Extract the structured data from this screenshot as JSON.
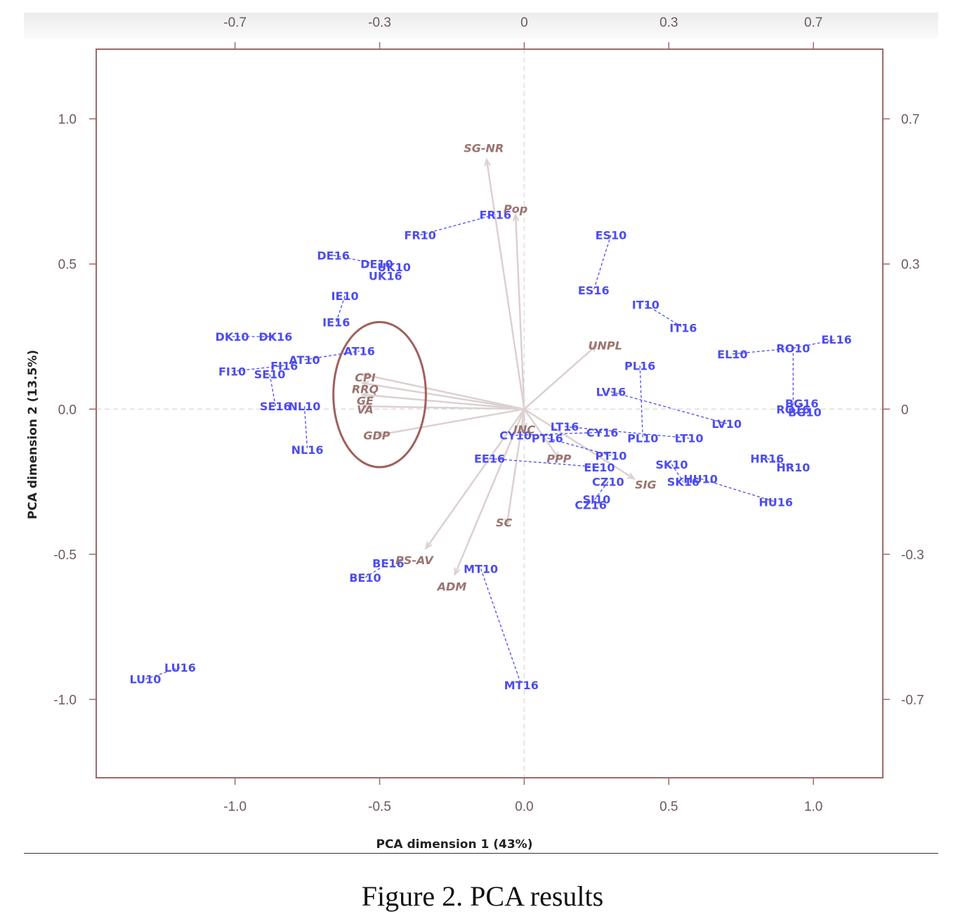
{
  "caption": "Figure 2. PCA results",
  "colors": {
    "frame": "#9a6b6b",
    "observation": "#4c4cf0",
    "variable": "#9a7470",
    "arrow": "#dcd0d0",
    "highlight": "#a0605e"
  },
  "chart_data": {
    "type": "scatter",
    "xlabel": "PCA dimension 1 (43%)",
    "ylabel": "PCA dimension 2 (13.5%)",
    "xlim": [
      -1.48,
      1.24
    ],
    "ylim": [
      -1.27,
      1.24
    ],
    "x_ticks": [
      "-1.0",
      "-0.5",
      "0.0",
      "0.5",
      "1.0"
    ],
    "y_ticks": [
      "1.0",
      "0.5",
      "0.0",
      "-0.5",
      "-1.0"
    ],
    "top_ticks": [
      "-0.7",
      "-0.3",
      "0",
      "0.3",
      "0.7"
    ],
    "right_ticks": [
      "0.7",
      "0.3",
      "0",
      "-0.3",
      "-0.7"
    ],
    "observations": [
      {
        "label": "DK10",
        "x": -1.01,
        "y": 0.25
      },
      {
        "label": "DK16",
        "x": -0.86,
        "y": 0.25
      },
      {
        "label": "DE16",
        "x": -0.66,
        "y": 0.53
      },
      {
        "label": "DE10",
        "x": -0.51,
        "y": 0.5
      },
      {
        "label": "UK10",
        "x": -0.45,
        "y": 0.49
      },
      {
        "label": "UK16",
        "x": -0.48,
        "y": 0.46
      },
      {
        "label": "FR10",
        "x": -0.36,
        "y": 0.6
      },
      {
        "label": "FR16",
        "x": -0.1,
        "y": 0.67
      },
      {
        "label": "IE10",
        "x": -0.62,
        "y": 0.39
      },
      {
        "label": "IE16",
        "x": -0.65,
        "y": 0.3
      },
      {
        "label": "AT10",
        "x": -0.76,
        "y": 0.17
      },
      {
        "label": "AT16",
        "x": -0.57,
        "y": 0.2
      },
      {
        "label": "FI16",
        "x": -0.83,
        "y": 0.15
      },
      {
        "label": "FI10",
        "x": -1.01,
        "y": 0.13
      },
      {
        "label": "SE10",
        "x": -0.88,
        "y": 0.12
      },
      {
        "label": "SE16",
        "x": -0.86,
        "y": 0.01
      },
      {
        "label": "NL10",
        "x": -0.76,
        "y": 0.01
      },
      {
        "label": "NL16",
        "x": -0.75,
        "y": -0.14
      },
      {
        "label": "LU10",
        "x": -1.31,
        "y": -0.93
      },
      {
        "label": "LU16",
        "x": -1.19,
        "y": -0.89
      },
      {
        "label": "BE16",
        "x": -0.47,
        "y": -0.53
      },
      {
        "label": "BE10",
        "x": -0.55,
        "y": -0.58
      },
      {
        "label": "MT10",
        "x": -0.15,
        "y": -0.55
      },
      {
        "label": "MT16",
        "x": -0.01,
        "y": -0.95
      },
      {
        "label": "EE16",
        "x": -0.12,
        "y": -0.17
      },
      {
        "label": "EE10",
        "x": 0.26,
        "y": -0.2
      },
      {
        "label": "CY10",
        "x": -0.03,
        "y": -0.09
      },
      {
        "label": "CY16",
        "x": 0.27,
        "y": -0.08
      },
      {
        "label": "PL16",
        "x": 0.4,
        "y": 0.15
      },
      {
        "label": "PL10",
        "x": 0.41,
        "y": -0.1
      },
      {
        "label": "LV16",
        "x": 0.3,
        "y": 0.06
      },
      {
        "label": "LV10",
        "x": 0.7,
        "y": -0.05
      },
      {
        "label": "LT16",
        "x": 0.14,
        "y": -0.06
      },
      {
        "label": "LT10",
        "x": 0.57,
        "y": -0.1
      },
      {
        "label": "PT16",
        "x": 0.08,
        "y": -0.1
      },
      {
        "label": "PT10",
        "x": 0.3,
        "y": -0.16
      },
      {
        "label": "CZ10",
        "x": 0.29,
        "y": -0.25
      },
      {
        "label": "CZ16",
        "x": 0.23,
        "y": -0.33
      },
      {
        "label": "SI10",
        "x": 0.25,
        "y": -0.31
      },
      {
        "label": "SK10",
        "x": 0.51,
        "y": -0.19
      },
      {
        "label": "SK16",
        "x": 0.55,
        "y": -0.25
      },
      {
        "label": "HU10",
        "x": 0.61,
        "y": -0.24
      },
      {
        "label": "HU16",
        "x": 0.87,
        "y": -0.32
      },
      {
        "label": "HR16",
        "x": 0.84,
        "y": -0.17
      },
      {
        "label": "HR10",
        "x": 0.93,
        "y": -0.2
      },
      {
        "label": "ES10",
        "x": 0.3,
        "y": 0.6
      },
      {
        "label": "ES16",
        "x": 0.24,
        "y": 0.41
      },
      {
        "label": "IT10",
        "x": 0.42,
        "y": 0.36
      },
      {
        "label": "IT16",
        "x": 0.55,
        "y": 0.28
      },
      {
        "label": "EL10",
        "x": 0.72,
        "y": 0.19
      },
      {
        "label": "RO10",
        "x": 0.93,
        "y": 0.21
      },
      {
        "label": "EL16",
        "x": 1.08,
        "y": 0.24
      },
      {
        "label": "BG16",
        "x": 0.96,
        "y": 0.02
      },
      {
        "label": "RO16",
        "x": 0.93,
        "y": 0.0
      },
      {
        "label": "BG10",
        "x": 0.97,
        "y": -0.01
      }
    ],
    "links": [
      [
        "DK10",
        "DK16"
      ],
      [
        "DE16",
        "DE10"
      ],
      [
        "FR10",
        "FR16"
      ],
      [
        "IE10",
        "IE16"
      ],
      [
        "AT10",
        "AT16"
      ],
      [
        "FI10",
        "FI16"
      ],
      [
        "SE10",
        "SE16"
      ],
      [
        "NL10",
        "NL16"
      ],
      [
        "LU10",
        "LU16"
      ],
      [
        "BE10",
        "BE16"
      ],
      [
        "MT10",
        "MT16"
      ],
      [
        "EE16",
        "EE10"
      ],
      [
        "CY10",
        "CY16"
      ],
      [
        "PL16",
        "PL10"
      ],
      [
        "LV16",
        "LV10"
      ],
      [
        "LT16",
        "LT10"
      ],
      [
        "PT16",
        "PT10"
      ],
      [
        "CZ10",
        "CZ16"
      ],
      [
        "SK10",
        "SK16"
      ],
      [
        "HU10",
        "HU16"
      ],
      [
        "HR16",
        "HR10"
      ],
      [
        "ES10",
        "ES16"
      ],
      [
        "IT10",
        "IT16"
      ],
      [
        "EL10",
        "RO10"
      ],
      [
        "RO10",
        "EL16"
      ],
      [
        "RO10",
        "RO16"
      ],
      [
        "BG16",
        "BG10"
      ]
    ],
    "variables": [
      {
        "label": "SG-NR",
        "x": -0.13,
        "y": 0.86,
        "lx": -0.14,
        "ly": 0.9
      },
      {
        "label": "Pop",
        "x": -0.03,
        "y": 0.67,
        "lx": -0.03,
        "ly": 0.69
      },
      {
        "label": "UNPL",
        "x": 0.25,
        "y": 0.22,
        "lx": 0.28,
        "ly": 0.22
      },
      {
        "label": "CPI",
        "x": -0.56,
        "y": 0.12,
        "lx": -0.55,
        "ly": 0.11
      },
      {
        "label": "RRQ",
        "x": -0.56,
        "y": 0.09,
        "lx": -0.55,
        "ly": 0.07
      },
      {
        "label": "GE",
        "x": -0.56,
        "y": 0.05,
        "lx": -0.55,
        "ly": 0.03
      },
      {
        "label": "VA",
        "x": -0.56,
        "y": 0.01,
        "lx": -0.55,
        "ly": 0.0
      },
      {
        "label": "GDP",
        "x": -0.51,
        "y": -0.09,
        "lx": -0.51,
        "ly": -0.09
      },
      {
        "label": "INC",
        "x": 0.0,
        "y": -0.07,
        "lx": 0.0,
        "ly": -0.07
      },
      {
        "label": "PPP",
        "x": 0.12,
        "y": -0.17,
        "lx": 0.12,
        "ly": -0.17
      },
      {
        "label": "SIG",
        "x": 0.38,
        "y": -0.24,
        "lx": 0.42,
        "ly": -0.26
      },
      {
        "label": "SC",
        "x": -0.06,
        "y": -0.4,
        "lx": -0.07,
        "ly": -0.39
      },
      {
        "label": "PS-AV",
        "x": -0.34,
        "y": -0.48,
        "lx": -0.38,
        "ly": -0.52
      },
      {
        "label": "ADM",
        "x": -0.24,
        "y": -0.57,
        "lx": -0.25,
        "ly": -0.61
      }
    ],
    "highlight_ellipse": {
      "cx": -0.5,
      "cy": 0.05,
      "rx": 0.16,
      "ry": 0.25
    }
  }
}
